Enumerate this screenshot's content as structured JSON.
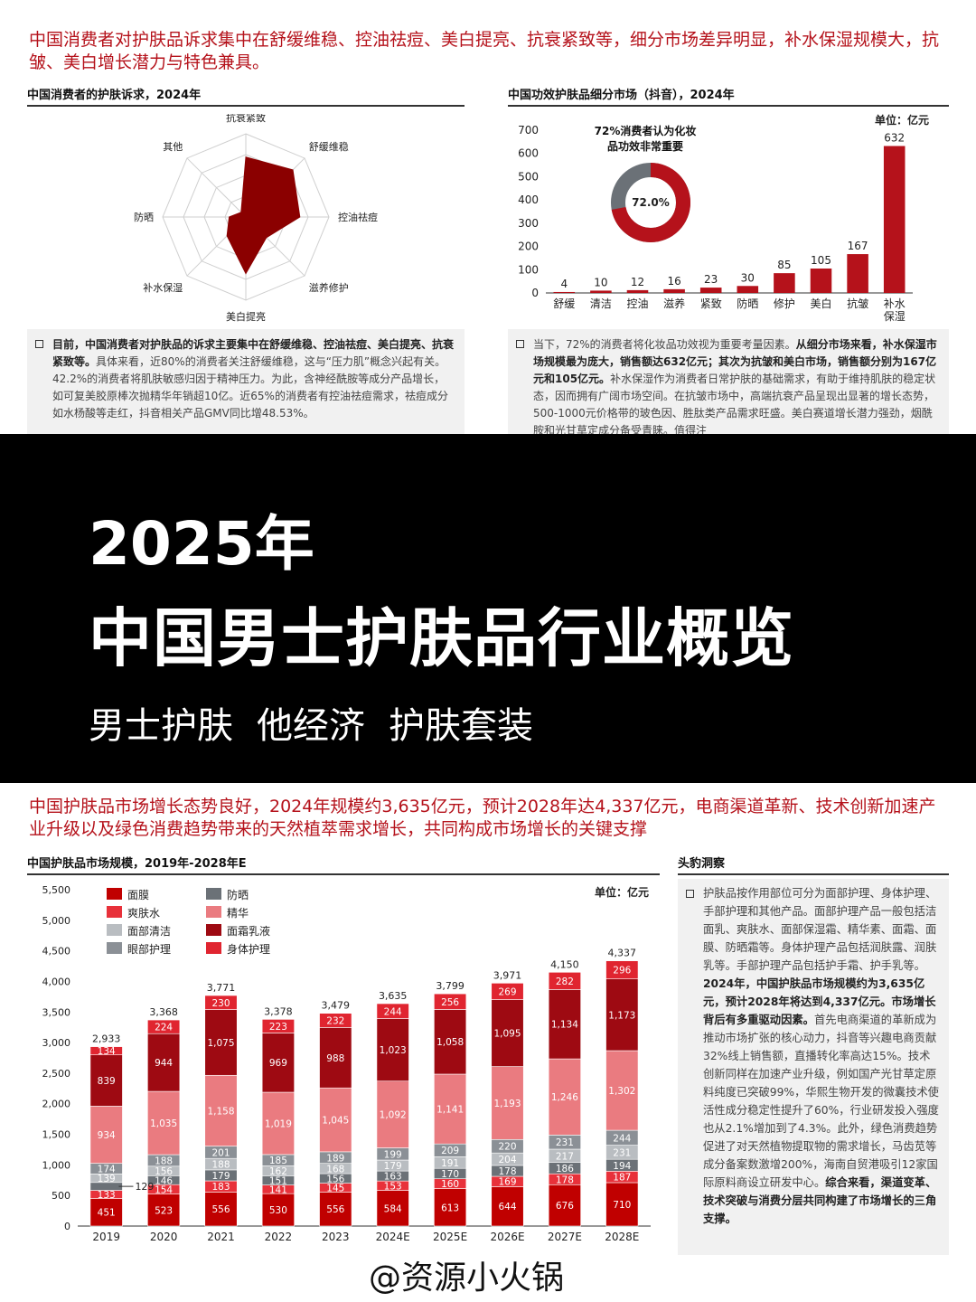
{
  "top_headline": "中国消费者对护肤品诉求集中在舒缓维稳、控油祛痘、美白提亮、抗衰紧致等，细分市场差异明显，补水保湿规模大，抗皱、美白增长潜力与特色兼具。",
  "radar_section_title": "中国消费者的护肤诉求，2024年",
  "bar_section_title": "中国功效护肤品细分市场（抖音），2024年",
  "bar_unit": "单位：亿元",
  "donut_caption_line1": "72%消费者认为化妆",
  "donut_caption_line2": "品功效非常重要",
  "donut_value": "72.0%",
  "note_left": {
    "bold1": "目前，中国消费者对护肤品的诉求主要集中在舒缓维稳、控油祛痘、美白提亮、抗衰紧致等。",
    "text1": "具体来看，近80%的消费者关注舒缓维稳，这与“压力肌”概念兴起有关。42.2%的消费者将肌肤敏感归因于精神压力。为此，含神经酰胺等成分产品增长，如可复美胶原棒次抛精华年销超10亿。近65%的消费者有控油祛痘需求，祛痘成分如水杨酸等走红，抖音相关产品GMV同比增48.53%。"
  },
  "note_right": {
    "text1": "当下，72%的消费者将化妆品功效视为重要考量因素。",
    "bold1": "从细分市场来看，补水保湿市场规模最为庞大，销售额达632亿元；其次为抗皱和美白市场，销售额分别为167亿元和105亿元。",
    "text2": "补水保湿作为消费者日常护肤的基础需求，有助于维持肌肤的稳定状态，因而拥有广阔市场空间。在抗皱市场中，高端抗衰产品呈现出显著的增长态势，500-1000元价格带的玻色因、胜肽类产品需求旺盛。美白赛道增长潜力强劲，烟酰胺和光甘草定成分备受青睐。值得注"
  },
  "banner": {
    "year": "2025年",
    "title": "中国男士护肤品行业概览",
    "tags": [
      "男士护肤",
      "他经济",
      "护肤套装"
    ]
  },
  "bottom_headline": "中国护肤品市场增长态势良好，2024年规模约3,635亿元，预计2028年达4,337亿元，电商渠道革新、技术创新加速产业升级以及绿色消费趋势带来的天然植萃需求增长，共同构成市场增长的关键支撑",
  "stack_section_title": "中国护肤品市场规模，2019年-2028年E",
  "stack_unit": "单位：亿元",
  "insight_title": "头豹洞察",
  "insight": {
    "text1": "护肤品按作用部位可分为面部护理、身体护理、手部护理和其他产品。面部护理产品一般包括洁面乳、爽肤水、面部保湿霜、精华素、面霜、面膜、防晒霜等。身体护理产品包括润肤露、润肤乳等。手部护理产品包括护手霜、护手乳等。",
    "bold1": "2024年，中国护肤品市场规模约为3,635亿元，预计2028年将达到4,337亿元。市场增长背后有多重驱动因素。",
    "text2": "首先电商渠道的革新成为推动市场扩张的核心动力，抖音等兴趣电商贡献32%线上销售额，直播转化率高达15%。技术创新同样在加速产业升级，例如国产光甘草定原料纯度已突破99%，华熙生物开发的微囊技术使活性成分稳定性提升了60%，行业研发投入强度也从2.1%增加到了4.3%。此外，绿色消费趋势促进了对天然植物提取物的需求增长，马齿苋等成分备案数激增200%，海南自贸港吸引12家国际原料商设立研发中心。",
    "bold2": "综合来看，渠道变革、技术突破与消费分层共同构建了市场增长的三角支撑。"
  },
  "watermark": "@资源小火锅",
  "colors": {
    "accent": "#b5121b",
    "dark_red": "#8b0000",
    "pink": "#e8767c",
    "gray": "#a8adb2",
    "dark_gray": "#6b7177",
    "red": "#d31f2b"
  },
  "chart_data": [
    {
      "type": "radar",
      "title": "中国消费者的护肤诉求，2024年",
      "categories": [
        "抗衰紧致",
        "舒缓维稳",
        "控油祛痘",
        "滋养修护",
        "美白提亮",
        "补水保湿",
        "防晒",
        "其他"
      ],
      "values": [
        0.72,
        0.8,
        0.65,
        0.35,
        0.68,
        0.32,
        0.2,
        0.08
      ],
      "scale": "fraction of consumers (approx.)"
    },
    {
      "type": "bar",
      "title": "中国功效护肤品细分市场（抖音），2024年",
      "unit": "单位：亿元",
      "categories": [
        "舒缓",
        "清洁",
        "控油",
        "滋养",
        "紧致",
        "防晒",
        "修护",
        "美白",
        "抗皱",
        "补水保湿"
      ],
      "values": [
        4,
        10,
        12,
        16,
        23,
        30,
        85,
        105,
        167,
        632
      ],
      "ylim": [
        0,
        700
      ],
      "yticks": [
        0,
        100,
        200,
        300,
        400,
        500,
        600,
        700
      ],
      "inset_donut": {
        "value": 72.0,
        "label": "72.0%"
      }
    },
    {
      "type": "stacked_bar",
      "title": "中国护肤品市场规模，2019年-2028年E",
      "unit": "单位：亿元",
      "categories": [
        "2019",
        "2020",
        "2021",
        "2022",
        "2023",
        "2024E",
        "2025E",
        "2026E",
        "2027E",
        "2028E"
      ],
      "ylim": [
        0,
        5500
      ],
      "yticks": [
        "0",
        "500",
        "1,000",
        "1,500",
        "2,000",
        "2,500",
        "3,000",
        "3,500",
        "4,000",
        "4,500",
        "5,000",
        "5,500"
      ],
      "totals": [
        "2,933",
        "3,368",
        "3,771",
        "3,378",
        "3,479",
        "3,635",
        "3,799",
        "3,971",
        "4,150",
        "4,337"
      ],
      "legend": [
        "面膜",
        "防晒",
        "爽肤水",
        "精华",
        "面部清洁",
        "面霜乳液",
        "眼部护理",
        "身体护理"
      ],
      "series": [
        {
          "name": "面膜",
          "color": "#c00000",
          "values": [
            451,
            523,
            556,
            530,
            556,
            584,
            613,
            644,
            676,
            710
          ]
        },
        {
          "name": "爽肤水",
          "color": "#e8313a",
          "values": [
            133,
            154,
            183,
            141,
            145,
            153,
            160,
            169,
            178,
            187
          ]
        },
        {
          "name": "防晒",
          "color": "#6b7177",
          "values": [
            129,
            146,
            179,
            151,
            156,
            163,
            170,
            178,
            186,
            194
          ]
        },
        {
          "name": "面部清洁",
          "color": "#b9bdc1",
          "values": [
            139,
            156,
            188,
            162,
            168,
            179,
            191,
            204,
            217,
            231
          ]
        },
        {
          "name": "眼部护理",
          "color": "#8b9096",
          "values": [
            174,
            188,
            201,
            185,
            189,
            199,
            209,
            220,
            231,
            244
          ]
        },
        {
          "name": "精华",
          "color": "#ea7b80",
          "values": [
            934,
            1035,
            1158,
            1019,
            1045,
            1092,
            1141,
            1193,
            1246,
            1302
          ]
        },
        {
          "name": "面霜乳液",
          "color": "#9e0a12",
          "values": [
            839,
            944,
            1075,
            969,
            988,
            1023,
            1058,
            1095,
            1134,
            1173
          ]
        },
        {
          "name": "身体护理",
          "color": "#e02530",
          "values": [
            134,
            224,
            230,
            223,
            232,
            244,
            256,
            269,
            282,
            296
          ]
        }
      ]
    }
  ]
}
